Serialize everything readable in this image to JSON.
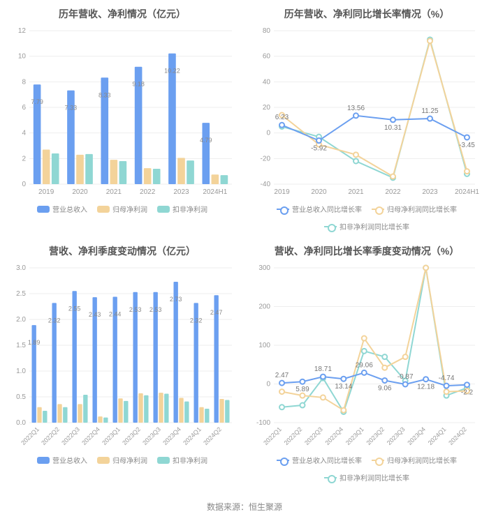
{
  "footer": "数据来源：恒生聚源",
  "colors": {
    "blue": "#6b9ff0",
    "yellow": "#f3d39a",
    "teal": "#8fd7d3",
    "grid": "#eeeeee",
    "bg": "#ffffff",
    "text": "#555555",
    "axis": "#999999"
  },
  "panels": {
    "tl": {
      "title": "历年营收、净利情况（亿元）",
      "type": "bar",
      "categories": [
        "2019",
        "2020",
        "2021",
        "2022",
        "2023",
        "2024H1"
      ],
      "series": [
        {
          "name": "营业总收入",
          "color": "#6b9ff0",
          "values": [
            7.79,
            7.33,
            8.33,
            9.18,
            10.22,
            4.79
          ]
        },
        {
          "name": "归母净利润",
          "color": "#f3d39a",
          "values": [
            2.7,
            2.3,
            1.9,
            1.25,
            2.05,
            0.75
          ]
        },
        {
          "name": "扣非净利润",
          "color": "#8fd7d3",
          "values": [
            2.4,
            2.35,
            1.8,
            1.2,
            1.85,
            0.7
          ]
        }
      ],
      "value_labels": [
        7.79,
        7.33,
        8.33,
        9.18,
        10.22,
        4.79
      ],
      "ylim": [
        0,
        12
      ],
      "ytick_step": 2,
      "legend": [
        "营业总收入",
        "归母净利润",
        "扣非净利润"
      ],
      "legend_style": "rect"
    },
    "tr": {
      "title": "历年营收、净利同比增长率情况（%）",
      "type": "line",
      "categories": [
        "2019",
        "2020",
        "2021",
        "2022",
        "2023",
        "2024H1"
      ],
      "series": [
        {
          "name": "营业总收入同比增长率",
          "color": "#6b9ff0",
          "values": [
            6.23,
            -5.92,
            13.56,
            10.31,
            11.25,
            -3.45
          ]
        },
        {
          "name": "归母净利润同比增长率",
          "color": "#f3d39a",
          "values": [
            14,
            -9,
            -17,
            -34,
            72,
            -30
          ]
        },
        {
          "name": "扣非净利润同比增长率",
          "color": "#8fd7d3",
          "values": [
            5,
            -3,
            -22,
            -35,
            73,
            -32
          ]
        }
      ],
      "value_labels": [
        6.23,
        -5.92,
        13.56,
        10.31,
        11.25,
        -3.45
      ],
      "ylim": [
        -40,
        80
      ],
      "ytick_step": 20,
      "legend": [
        "营业总收入同比增长率",
        "归母净利润同比增长率",
        "扣非净利润同比增长率"
      ],
      "legend_style": "line"
    },
    "bl": {
      "title": "营收、净利季度变动情况（亿元）",
      "type": "bar",
      "categories": [
        "2022Q1",
        "2022Q2",
        "2022Q3",
        "2022Q4",
        "2023Q1",
        "2023Q2",
        "2023Q3",
        "2023Q4",
        "2024Q1",
        "2024Q2"
      ],
      "series": [
        {
          "name": "营业总收入",
          "color": "#6b9ff0",
          "values": [
            1.89,
            2.32,
            2.55,
            2.43,
            2.44,
            2.53,
            2.53,
            2.73,
            2.32,
            2.47
          ]
        },
        {
          "name": "归母净利润",
          "color": "#f3d39a",
          "values": [
            0.3,
            0.36,
            0.36,
            0.12,
            0.47,
            0.57,
            0.58,
            0.48,
            0.3,
            0.46
          ]
        },
        {
          "name": "扣非净利润",
          "color": "#8fd7d3",
          "values": [
            0.23,
            0.3,
            0.54,
            0.1,
            0.42,
            0.53,
            0.56,
            0.41,
            0.27,
            0.44
          ]
        }
      ],
      "value_labels": [
        1.89,
        2.32,
        2.55,
        2.43,
        2.44,
        2.53,
        2.53,
        2.73,
        2.32,
        2.47
      ],
      "ylim": [
        0,
        3
      ],
      "ytick_step": 0.5,
      "legend": [
        "营业总收入",
        "归母净利润",
        "扣非净利润"
      ],
      "legend_style": "rect",
      "rotate_x": true
    },
    "br": {
      "title": "营收、净利同比增长率季度变动情况（%）",
      "type": "line",
      "categories": [
        "2022Q1",
        "2022Q2",
        "2022Q3",
        "2022Q4",
        "2023Q1",
        "2023Q2",
        "2023Q3",
        "2023Q4",
        "2024Q1",
        "2024Q2"
      ],
      "series": [
        {
          "name": "营业总收入同比增长率",
          "color": "#6b9ff0",
          "values": [
            2.47,
            5.89,
            18.71,
            13.14,
            29.06,
            9.06,
            -0.87,
            12.18,
            -4.74,
            -2.2
          ]
        },
        {
          "name": "归母净利润同比增长率",
          "color": "#f3d39a",
          "values": [
            -20,
            -30,
            -35,
            -68,
            118,
            42,
            70,
            300,
            -20,
            -18
          ]
        },
        {
          "name": "扣非净利润同比增长率",
          "color": "#8fd7d3",
          "values": [
            -60,
            -55,
            15,
            -72,
            85,
            70,
            8,
            300,
            -30,
            -10
          ]
        }
      ],
      "value_labels": [
        2.47,
        5.89,
        18.71,
        13.14,
        29.06,
        9.06,
        -0.87,
        12.18,
        -4.74,
        -2.2
      ],
      "ylim": [
        -100,
        300
      ],
      "ytick_step": 100,
      "legend": [
        "营业总收入同比增长率",
        "归母净利润同比增长率",
        "扣非净利润同比增长率"
      ],
      "legend_style": "line",
      "rotate_x": true
    }
  }
}
